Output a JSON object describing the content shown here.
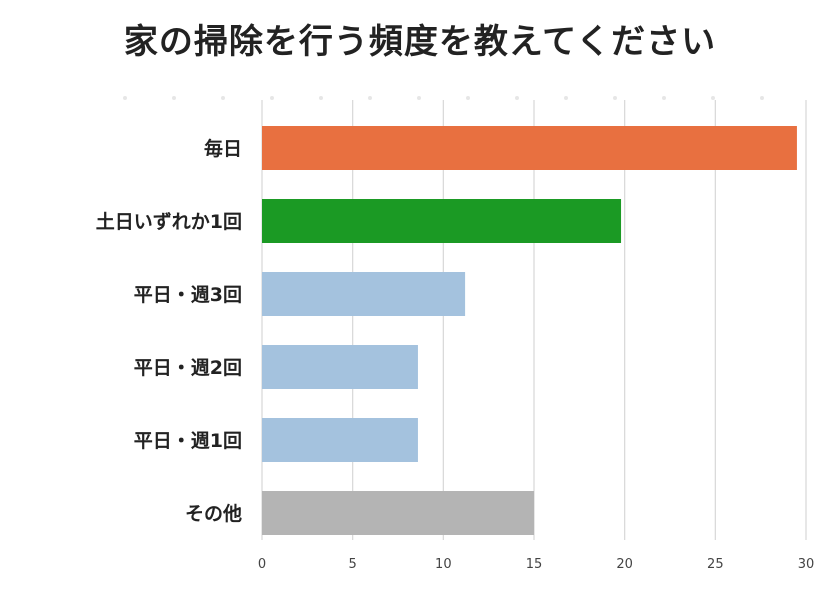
{
  "chart_data": {
    "type": "bar",
    "orientation": "horizontal",
    "title": "家の掃除を行う頻度を教えてください",
    "categories": [
      "毎日",
      "土日いずれか1回",
      "平日・週3回",
      "平日・週2回",
      "平日・週1回",
      "その他"
    ],
    "values": [
      29.5,
      19.8,
      11.2,
      8.6,
      8.6,
      15.0
    ],
    "colors": [
      "#E87040",
      "#1B9A24",
      "#A4C2DE",
      "#A4C2DE",
      "#A4C2DE",
      "#B4B4B4"
    ],
    "xlim": [
      0,
      30
    ],
    "xticks": [
      "0",
      "5",
      "10",
      "15",
      "20",
      "25",
      "30"
    ],
    "grid": true,
    "legend": "none"
  }
}
